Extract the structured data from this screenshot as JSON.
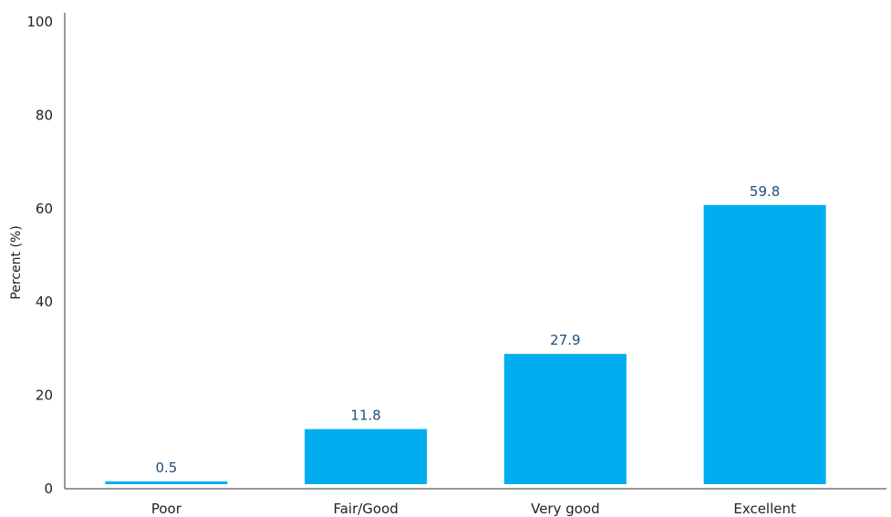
{
  "chart_data": {
    "type": "bar",
    "title": "",
    "xlabel": "",
    "ylabel": "Percent (%)",
    "categories": [
      "Poor",
      "Fair/Good",
      "Very good",
      "Excellent"
    ],
    "values": [
      0.5,
      11.8,
      27.9,
      59.8
    ],
    "data_labels": [
      "0.5",
      "11.8",
      "27.9",
      "59.8"
    ],
    "ylim": [
      0,
      100
    ],
    "yticks": [
      0,
      20,
      40,
      60,
      80,
      100
    ],
    "ytick_labels": [
      "0",
      "20",
      "40",
      "60",
      "80",
      "100"
    ],
    "grid": false,
    "legend": "none"
  },
  "colors": {
    "bar": "#00aeef",
    "data_label": "#1f4e79",
    "text": "#222222",
    "axis": "#777777"
  }
}
